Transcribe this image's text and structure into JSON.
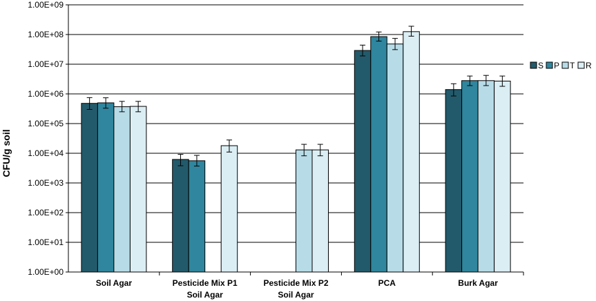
{
  "chart_data": {
    "type": "bar",
    "title": "",
    "xlabel": "",
    "ylabel": "CFU/g soil",
    "yscale": "log",
    "ylim": [
      1,
      1000000000
    ],
    "yticks": [
      "1.00E+00",
      "1.00E+01",
      "1.00E+02",
      "1.00E+03",
      "1.00E+04",
      "1.00E+05",
      "1.00E+06",
      "1.00E+07",
      "1.00E+08",
      "1.00E+09"
    ],
    "grid": true,
    "legend_position": "right",
    "categories": [
      [
        "Soil Agar"
      ],
      [
        "Pesticide Mix P1",
        "Soil Agar"
      ],
      [
        "Pesticide Mix P2",
        "Soil Agar"
      ],
      [
        "PCA"
      ],
      [
        "Burk Agar"
      ]
    ],
    "series": [
      {
        "name": "S",
        "color": "#235a6b",
        "values": [
          480000,
          6200,
          null,
          29000000,
          1400000
        ],
        "err_low": [
          300000,
          3800,
          null,
          19000000,
          850000
        ],
        "err_high": [
          750000,
          9200,
          null,
          44000000,
          2200000
        ]
      },
      {
        "name": "P",
        "color": "#2f869e",
        "values": [
          500000,
          5600,
          null,
          85000000,
          2800000
        ],
        "err_low": [
          330000,
          3700,
          null,
          60000000,
          1900000
        ],
        "err_high": [
          740000,
          8500,
          null,
          122000000,
          4000000
        ]
      },
      {
        "name": "T",
        "color": "#b7dce8",
        "values": [
          370000,
          null,
          13000,
          48000000,
          2800000
        ],
        "err_low": [
          250000,
          null,
          8200,
          31000000,
          1900000
        ],
        "err_high": [
          560000,
          null,
          20000,
          74000000,
          4200000
        ]
      },
      {
        "name": "R",
        "color": "#dbeef4",
        "values": [
          380000,
          18000,
          13000,
          125000000,
          2700000
        ],
        "err_low": [
          250000,
          11000,
          8200,
          88000000,
          1800000
        ],
        "err_high": [
          560000,
          28000,
          20000,
          190000000,
          4000000
        ]
      }
    ]
  }
}
